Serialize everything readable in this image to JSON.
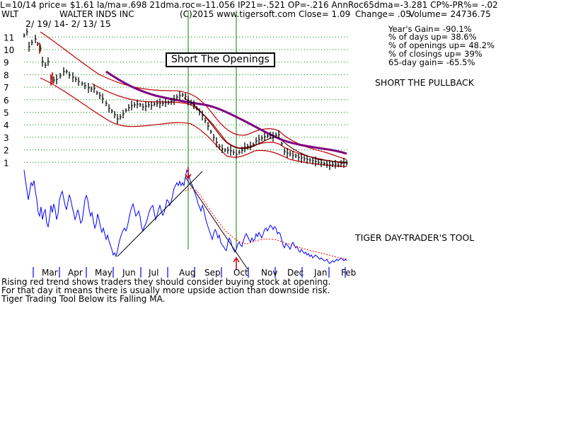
{
  "header": {
    "line1": "L=10/14  price= $1.61  la/ma=.698 21dma.roc=-11.056 IP21=-.521 OP=-.216 AnnRoc65dma=-3.281 CP%-PR%= -.02",
    "ticker": "WLT",
    "company": "WALTER INDS INC",
    "copyright": "(C)2015 www.tigersoft.com",
    "close": "Close=  1.09",
    "change": "Change= .05",
    "volume": "Volume= 24736.75",
    "date_range": "2/ 19/ 14-  2/ 13/ 15"
  },
  "stats": [
    "Year's Gain= -90.1%",
    "% of days up= 38.6%",
    "% of openings up= 48.2%",
    "% of closings up= 39%",
    "65-day gain= -65.5%"
  ],
  "labels": {
    "short_openings": "Short The Openings",
    "short_pullback": "SHORT THE PULLBACK",
    "tool": "TIGER DAY-TRADER'S TOOL"
  },
  "footer": [
    "Rising red trend shows traders they should consider buying stock at opening.",
    " For that day it means there is usually more upside action than downside risk.",
    "Tiger Trading Tool Below its Falling MA."
  ],
  "colors": {
    "price": "#000000",
    "bands": "#c00000",
    "ma50": "#800080",
    "tool": "#0000ff",
    "tool_ma": "#ff0000",
    "signal_lines": "#008000",
    "grid": "#008000"
  },
  "chart_data": {
    "type": "line",
    "y_ticks": [
      "11",
      "10",
      "9",
      "8",
      "7",
      "6",
      "5",
      "4",
      "3",
      "2",
      "1"
    ],
    "months": [
      "Mar",
      "Apr",
      "May",
      "Jun",
      "Jul",
      "Aug",
      "Sep",
      "Oct",
      "Nov",
      "Dec",
      "Jan",
      "Feb"
    ],
    "signal_dates": [
      "Aug",
      "Oct"
    ],
    "price_series": {
      "name": "Price",
      "x": [
        "Feb",
        "Mar",
        "Apr",
        "May",
        "Jun",
        "Jul",
        "Aug",
        "Sep",
        "Oct",
        "Nov",
        "Dec",
        "Jan",
        "Feb"
      ],
      "values": [
        11.2,
        9.0,
        7.5,
        6.5,
        4.5,
        5.8,
        6.6,
        4.5,
        1.8,
        3.0,
        1.8,
        1.1,
        1.1
      ]
    }
  }
}
